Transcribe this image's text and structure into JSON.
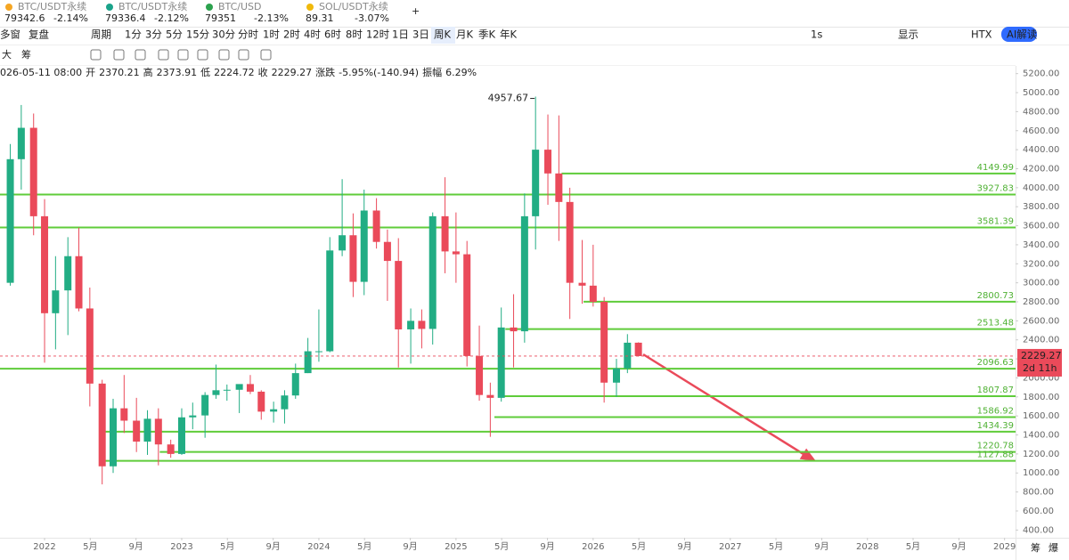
{
  "tickers": [
    {
      "name": "BTC/USDT永续",
      "price": "79342.6",
      "change": "-2.14%",
      "color": "#14a36b"
    },
    {
      "name": "BTC/USDT永续",
      "price": "79336.4",
      "change": "-2.12%",
      "color": "#14a36b"
    },
    {
      "name": "BTC/USD",
      "price": "79351",
      "change": "-2.13%",
      "color": "#222222"
    },
    {
      "name": "SOL/USDT永续",
      "price": "89.31",
      "change": "-3.07%",
      "color": "#222222"
    }
  ],
  "toolbar": {
    "left": [
      "多窗",
      "复盘",
      "周期"
    ],
    "intervals": [
      "1分",
      "3分",
      "5分",
      "15分",
      "30分",
      "分时",
      "1时",
      "2时",
      "4时",
      "6时",
      "8时",
      "12时",
      "1日",
      "3日",
      "周K",
      "月K",
      "季K",
      "年K"
    ],
    "active": "周K",
    "right": [
      "1s",
      "显示",
      "HTX",
      "AI解读"
    ]
  },
  "draw_tools": [
    "大",
    "筹"
  ],
  "ohlc_info": {
    "time": "026-05-11 08:00",
    "open_label": "开",
    "high_label": "高",
    "low_label": "低",
    "close_label": "收",
    "change_label": "涨跌",
    "change": "-5.95%(-140.94)",
    "amplitude_label": "振幅",
    "amplitude": "6.29%"
  },
  "chart_data": {
    "type": "candlestick",
    "candles": {
      "x": [
        2021.75,
        2021.83,
        2021.92,
        2022.0,
        2022.08,
        2022.17,
        2022.25,
        2022.33,
        2022.42,
        2022.5,
        2022.58,
        2022.67,
        2022.75,
        2022.83,
        2022.92,
        2023.0,
        2023.08,
        2023.17,
        2023.25,
        2023.33,
        2023.42,
        2023.5,
        2023.58,
        2023.67,
        2023.75,
        2023.83,
        2023.92,
        2024.0,
        2024.08,
        2024.17,
        2024.25,
        2024.33,
        2024.42,
        2024.5,
        2024.58,
        2024.67,
        2024.75,
        2024.83,
        2024.92,
        2025.0,
        2025.08,
        2025.17,
        2025.25,
        2025.33,
        2025.42,
        2025.5,
        2025.58,
        2025.67,
        2025.75,
        2025.83,
        2025.92,
        2026.0,
        2026.08,
        2026.17,
        2026.25,
        2026.33
      ],
      "open": [
        3000,
        4300,
        4630,
        3700,
        2680,
        2920,
        3280,
        2730,
        1940,
        1070,
        1680,
        1550,
        1330,
        1570,
        1300,
        1200,
        1585,
        1605,
        1820,
        1870,
        1875,
        1935,
        1855,
        1645,
        1670,
        1815,
        2050,
        2280,
        2280,
        3340,
        3500,
        3010,
        3760,
        3430,
        3230,
        2510,
        2600,
        2515,
        3700,
        3330,
        3300,
        2230,
        1820,
        1790,
        2530,
        2490,
        3700,
        4400,
        4150,
        3850,
        3000,
        2970,
        2800,
        1950,
        2100,
        2370.21
      ],
      "high": [
        4460,
        4870,
        4780,
        3880,
        3280,
        3480,
        3580,
        2950,
        1980,
        1780,
        2030,
        1790,
        1660,
        1680,
        1350,
        1680,
        1740,
        1850,
        2140,
        1930,
        1930,
        2030,
        1870,
        1750,
        1870,
        2150,
        2420,
        2720,
        3480,
        4090,
        3730,
        3980,
        3890,
        3560,
        3470,
        2730,
        2720,
        3740,
        4110,
        3740,
        3440,
        2550,
        1950,
        2740,
        2880,
        3940,
        4957.67,
        4770,
        4760,
        4000,
        3450,
        3400,
        2850,
        2200,
        2460,
        2373.91
      ],
      "low": [
        2970,
        3980,
        3500,
        2160,
        2300,
        2450,
        2700,
        1700,
        880,
        1000,
        1420,
        1220,
        1190,
        1080,
        1160,
        1190,
        1460,
        1370,
        1780,
        1760,
        1630,
        1830,
        1560,
        1530,
        1520,
        1780,
        2050,
        2170,
        2270,
        3280,
        2850,
        2870,
        3360,
        2810,
        2110,
        2150,
        2310,
        2350,
        3100,
        3000,
        2120,
        1760,
        1380,
        1750,
        2110,
        2370,
        3350,
        3820,
        3440,
        2620,
        2780,
        2750,
        1740,
        1800,
        2050,
        2224.72
      ],
      "close": [
        4300,
        4630,
        3700,
        2680,
        2920,
        3280,
        2730,
        1940,
        1070,
        1680,
        1550,
        1330,
        1570,
        1300,
        1200,
        1585,
        1605,
        1820,
        1870,
        1875,
        1935,
        1855,
        1645,
        1670,
        1815,
        2050,
        2280,
        2280,
        3340,
        3500,
        3010,
        3760,
        3430,
        3230,
        2510,
        2600,
        2515,
        3700,
        3330,
        3300,
        2230,
        1820,
        1790,
        2530,
        2490,
        3700,
        4400,
        4150,
        3850,
        3000,
        2970,
        2800,
        1950,
        2100,
        2370,
        2229.27
      ]
    },
    "up_color": "#22ad84",
    "down_color": "#ea4a5a",
    "xlim": [
      2021.675,
      2029.08
    ],
    "xticks": [
      2022,
      {
        "value": 2022.333,
        "label": "5月"
      },
      {
        "value": 2022.667,
        "label": "9月"
      },
      2023,
      {
        "value": 2023.333,
        "label": "5月"
      },
      {
        "value": 2023.667,
        "label": "9月"
      },
      2024,
      {
        "value": 2024.333,
        "label": "5月"
      },
      {
        "value": 2024.667,
        "label": "9月"
      },
      2025,
      {
        "value": 2025.333,
        "label": "5月"
      },
      {
        "value": 2025.667,
        "label": "9月"
      },
      2026,
      {
        "value": 2026.333,
        "label": "5月"
      },
      {
        "value": 2026.667,
        "label": "9月"
      },
      2027,
      {
        "value": 2027.333,
        "label": "5月"
      },
      {
        "value": 2027.667,
        "label": "9月"
      },
      2028,
      {
        "value": 2028.333,
        "label": "5月"
      },
      {
        "value": 2028.667,
        "label": "9月"
      },
      2029
    ],
    "ylim": [
      300,
      5300
    ],
    "yticks": [
      {
        "value": 400,
        "label": "400.00"
      },
      {
        "value": 600,
        "label": "600.00"
      },
      {
        "value": 800,
        "label": "800.00"
      },
      {
        "value": 1000,
        "label": "1000.00"
      },
      {
        "value": 1200,
        "label": "1200.00"
      },
      {
        "value": 1400,
        "label": "1400.00"
      },
      {
        "value": 1600,
        "label": "1600.00"
      },
      {
        "value": 1800,
        "label": "1800.00"
      },
      {
        "value": 2000,
        "label": "2000.00"
      },
      {
        "value": 2200,
        "label": "2200.00"
      },
      {
        "value": 2400,
        "label": "2400.00"
      },
      {
        "value": 2600,
        "label": "2600.00"
      },
      {
        "value": 2800,
        "label": "2800.00"
      },
      {
        "value": 3000,
        "label": "3000.00"
      },
      {
        "value": 3200,
        "label": "3200.00"
      },
      {
        "value": 3400,
        "label": "3400.00"
      },
      {
        "value": 3600,
        "label": "3600.00"
      },
      {
        "value": 3800,
        "label": "3800.00"
      },
      {
        "value": 4000,
        "label": "4000.00"
      },
      {
        "value": 4200,
        "label": "4200.00"
      },
      {
        "value": 4400,
        "label": "4400.00"
      },
      {
        "value": 4600,
        "label": "4600.00"
      },
      {
        "value": 4800,
        "label": "4800.00"
      },
      {
        "value": 5000,
        "label": "5000.00"
      },
      {
        "value": 5200,
        "label": "5200.00"
      }
    ],
    "grid": false,
    "levels": [
      {
        "value": 4149.99,
        "start": 2025.77
      },
      {
        "value": 3927.83,
        "start": 2021.675
      },
      {
        "value": 3581.39,
        "start": 2021.675
      },
      {
        "value": 2800.73,
        "start": 2025.93
      },
      {
        "value": 2513.48,
        "start": 2025.36
      },
      {
        "value": 2096.63,
        "start": 2021.675
      },
      {
        "value": 1807.87,
        "start": 2025.35
      },
      {
        "value": 1586.92,
        "start": 2025.28
      },
      {
        "value": 1434.39,
        "start": 2022.44
      },
      {
        "value": 1220.78,
        "start": 2022.84
      },
      {
        "value": 1127.88,
        "start": 2022.44
      }
    ],
    "level_color": "#5fcc3a",
    "countdown": "2d 11h"
  },
  "footer": [
    "筹",
    "爆"
  ]
}
